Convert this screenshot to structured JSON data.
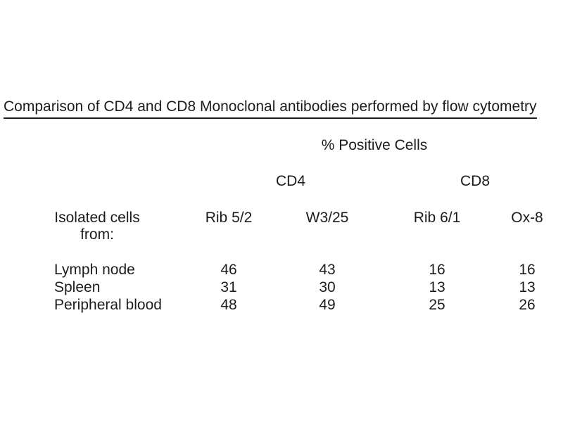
{
  "page": {
    "background": "#ffffff",
    "text_color": "#1c1c1c"
  },
  "title": "Comparison of CD4 and CD8 Monoclonal antibodies performed by flow cytometry",
  "table": {
    "caption": "% Positive Cells",
    "group_headers": [
      {
        "label": "CD4"
      },
      {
        "label": "CD8"
      }
    ],
    "stub_header": {
      "line1": "Isolated cells",
      "line2": "from:"
    },
    "columns": [
      "Rib 5/2",
      "W3/25",
      "Rib 6/1",
      "Ox-8"
    ],
    "rows": [
      {
        "label": "Lymph node",
        "values": [
          "46",
          "43",
          "16",
          "16"
        ]
      },
      {
        "label": "Spleen",
        "values": [
          "31",
          "30",
          "13",
          "13"
        ]
      },
      {
        "label": "Peripheral blood",
        "values": [
          "48",
          "49",
          "25",
          "26"
        ]
      }
    ]
  },
  "chart_data": {
    "type": "table",
    "title": "Comparison of CD4 and CD8 Monoclonal antibodies performed by flow cytometry",
    "value_unit": "% Positive Cells",
    "column_groups": {
      "CD4": [
        "Rib 5/2",
        "W3/25"
      ],
      "CD8": [
        "Rib 6/1",
        "Ox-8"
      ]
    },
    "categories": [
      "Lymph node",
      "Spleen",
      "Peripheral blood"
    ],
    "series": [
      {
        "name": "Rib 5/2",
        "group": "CD4",
        "values": [
          46,
          31,
          48
        ]
      },
      {
        "name": "W3/25",
        "group": "CD4",
        "values": [
          43,
          30,
          49
        ]
      },
      {
        "name": "Rib 6/1",
        "group": "CD8",
        "values": [
          16,
          13,
          25
        ]
      },
      {
        "name": "Ox-8",
        "group": "CD8",
        "values": [
          16,
          13,
          26
        ]
      }
    ]
  }
}
